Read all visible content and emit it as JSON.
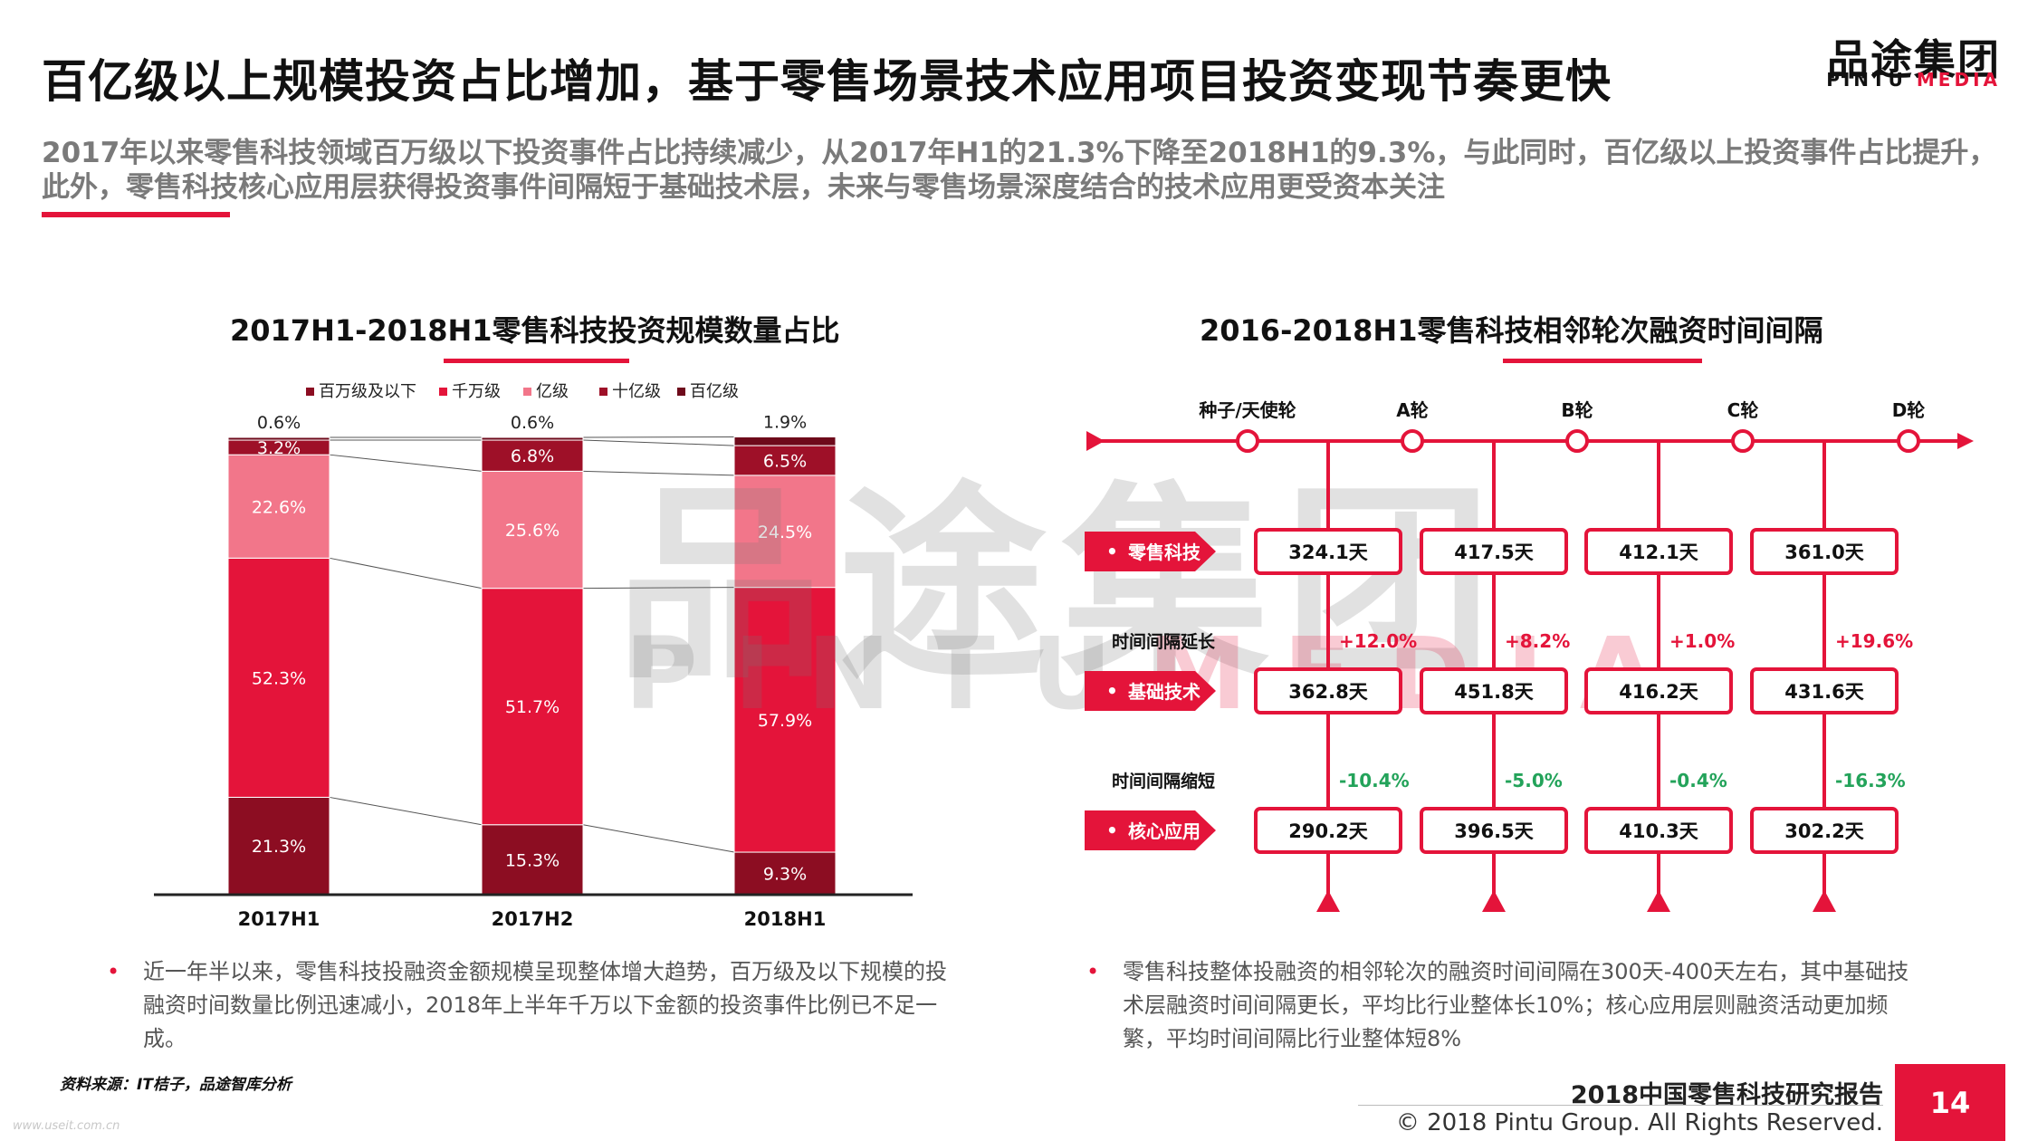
{
  "header": {
    "title": "百亿级以上规模投资占比增加，基于零售场景技术应用项目投资变现节奏更快",
    "logo_cn": "品途集团",
    "logo_en_black": "PINTU",
    "logo_en_red": "MEDIA",
    "subtitle": "2017年以来零售科技领域百万级以下投资事件占比持续减少，从2017年H1的21.3%下降至2018H1的9.3%，与此同时，百亿级以上投资事件占比提升，此外，零售科技核心应用层获得投资事件间隔短于基础技术层，未来与零售场景深度结合的技术应用更受资本关注"
  },
  "watermark": {
    "cn": "品途集团",
    "en_black": "PINTU",
    "en_red": "MEDIA"
  },
  "left_panel": {
    "title": "2017H1-2018H1零售科技投资规模数量占比",
    "bullet": "近一年半以来，零售科技投融资金额规模呈现整体增大趋势，百万级及以下规模的投融资时间数量比例迅速减小，2018年上半年千万以下金额的投资事件比例已不足一成。"
  },
  "right_panel": {
    "title": "2016-2018H1零售科技相邻轮次融资时间间隔",
    "bullet": "零售科技整体投融资的相邻轮次的融资时间间隔在300天-400天左右，其中基础技术层融资时间间隔更长，平均比行业整体长10%；核心应用层则融资活动更加频繁，平均时间间隔比行业整体短8%",
    "long_label": "时间间隔延长",
    "short_label": "时间间隔缩短"
  },
  "chart_data": [
    {
      "type": "bar",
      "stacked": true,
      "categories": [
        "2017H1",
        "2017H2",
        "2018H1"
      ],
      "series": [
        {
          "name": "百万级及以下",
          "values": [
            21.3,
            15.3,
            9.3
          ],
          "color": "#8c0d22"
        },
        {
          "name": "千万级",
          "values": [
            52.3,
            51.7,
            57.9
          ],
          "color": "#e4143a"
        },
        {
          "name": "亿级",
          "values": [
            22.6,
            25.6,
            24.5
          ],
          "color": "#f2768a"
        },
        {
          "name": "十亿级",
          "values": [
            3.2,
            6.8,
            6.5
          ],
          "color": "#9e1028"
        },
        {
          "name": "百亿级",
          "values": [
            0.6,
            0.6,
            1.9
          ],
          "color": "#6e0a1b"
        }
      ],
      "value_labels": [
        [
          "21.3%",
          "52.3%",
          "22.6%",
          "3.2%",
          "0.6%"
        ],
        [
          "15.3%",
          "51.7%",
          "25.6%",
          "6.8%",
          "0.6%"
        ],
        [
          "9.3%",
          "57.9%",
          "24.5%",
          "6.5%",
          "1.9%"
        ]
      ],
      "ylim": [
        0,
        100
      ],
      "legend_position": "top"
    },
    {
      "type": "table",
      "rounds": [
        "种子/天使轮",
        "A轮",
        "B轮",
        "C轮",
        "D轮"
      ],
      "rows": [
        {
          "label": "零售科技",
          "values": [
            "324.1天",
            "417.5天",
            "412.1天",
            "361.0天"
          ]
        },
        {
          "label": "基础技术",
          "values": [
            "362.8天",
            "451.8天",
            "416.2天",
            "431.6天"
          ]
        },
        {
          "label": "核心应用",
          "values": [
            "290.2天",
            "396.5天",
            "410.3天",
            "302.2天"
          ]
        }
      ],
      "changes_longer": [
        "+12.0%",
        "+8.2%",
        "+1.0%",
        "+19.6%"
      ],
      "changes_shorter": [
        "-10.4%",
        "-5.0%",
        "-0.4%",
        "-16.3%"
      ]
    }
  ],
  "footer": {
    "source": "资料来源：IT桔子，品途智库分析",
    "report": "2018中国零售科技研究报告",
    "copyright": "© 2018 Pintu Group. All Rights Reserved.",
    "page_number": "14",
    "url": "www.useit.com.cn"
  }
}
